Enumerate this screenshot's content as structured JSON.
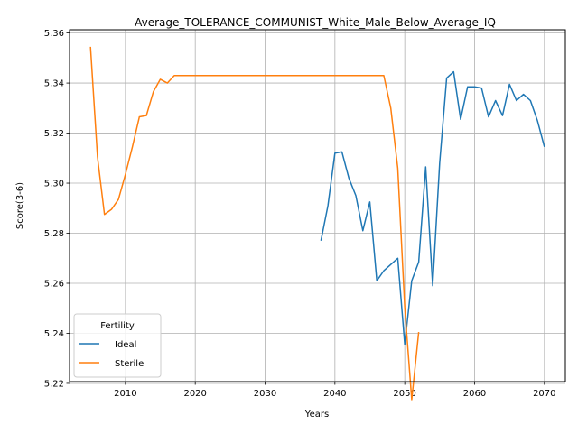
{
  "chart_data": {
    "type": "line",
    "title": "Average_TOLERANCE_COMMUNIST_White_Male_Below_Average_IQ",
    "xlabel": "Years",
    "ylabel": "Score(3-6)",
    "xlim": [
      2002,
      2073
    ],
    "ylim": [
      5.2207,
      5.3613
    ],
    "xticks": [
      2010,
      2020,
      2030,
      2040,
      2050,
      2060,
      2070
    ],
    "yticks": [
      5.22,
      5.24,
      5.26,
      5.28,
      5.3,
      5.32,
      5.34,
      5.36
    ],
    "grid": true,
    "legend": {
      "title": "Fertility",
      "placement": "lower-left"
    },
    "series": [
      {
        "name": "Ideal",
        "color": "#1f77b4",
        "x": [
          2038,
          2039,
          2040,
          2041,
          2042,
          2043,
          2044,
          2045,
          2046,
          2047,
          2048,
          2049,
          2050,
          2051,
          2052,
          2053,
          2054,
          2055,
          2056,
          2057,
          2058,
          2059,
          2060,
          2061,
          2062,
          2063,
          2064,
          2065,
          2066,
          2067,
          2068,
          2069,
          2070
        ],
        "y": [
          5.277,
          5.291,
          5.312,
          5.3125,
          5.302,
          5.295,
          5.281,
          5.2925,
          5.261,
          5.265,
          5.2675,
          5.27,
          5.2355,
          5.261,
          5.2685,
          5.3065,
          5.259,
          5.308,
          5.342,
          5.3445,
          5.3255,
          5.3385,
          5.3385,
          5.338,
          5.3265,
          5.333,
          5.327,
          5.3395,
          5.333,
          5.3355,
          5.333,
          5.325,
          5.3145
        ]
      },
      {
        "name": "Sterile",
        "color": "#ff7f0e",
        "x": [
          2005,
          2006,
          2007,
          2008,
          2009,
          2010,
          2011,
          2012,
          2013,
          2014,
          2015,
          2016,
          2017,
          2018,
          2019,
          2020,
          2021,
          2022,
          2023,
          2024,
          2025,
          2026,
          2027,
          2028,
          2029,
          2030,
          2031,
          2032,
          2033,
          2034,
          2035,
          2036,
          2037,
          2038,
          2039,
          2040,
          2041,
          2042,
          2043,
          2044,
          2045,
          2046,
          2047,
          2048,
          2049,
          2050,
          2051,
          2052
        ],
        "y": [
          5.3545,
          5.3105,
          5.2875,
          5.2895,
          5.2935,
          5.3035,
          5.3145,
          5.3265,
          5.327,
          5.3365,
          5.3415,
          5.34,
          5.343,
          5.343,
          5.343,
          5.343,
          5.343,
          5.343,
          5.343,
          5.343,
          5.343,
          5.343,
          5.343,
          5.343,
          5.343,
          5.343,
          5.343,
          5.343,
          5.343,
          5.343,
          5.343,
          5.343,
          5.343,
          5.343,
          5.343,
          5.343,
          5.343,
          5.343,
          5.343,
          5.343,
          5.343,
          5.343,
          5.343,
          5.33,
          5.306,
          5.2505,
          5.2135,
          5.2405
        ]
      }
    ]
  }
}
